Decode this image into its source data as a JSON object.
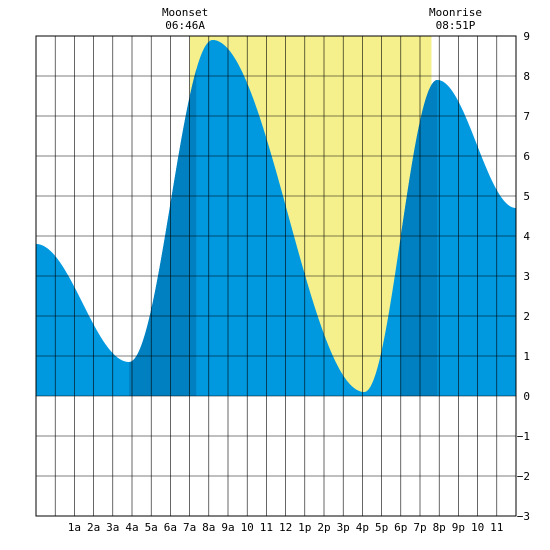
{
  "chart_data": {
    "type": "area",
    "x_unit": "hour of day",
    "xlim": [
      -1,
      24
    ],
    "ylim": [
      -3,
      9
    ],
    "y_ticks": [
      -3,
      -2,
      -1,
      0,
      1,
      2,
      3,
      4,
      5,
      6,
      7,
      8,
      9
    ],
    "x_ticks": [
      {
        "x": 1,
        "label": "1a"
      },
      {
        "x": 2,
        "label": "2a"
      },
      {
        "x": 3,
        "label": "3a"
      },
      {
        "x": 4,
        "label": "4a"
      },
      {
        "x": 5,
        "label": "5a"
      },
      {
        "x": 6,
        "label": "6a"
      },
      {
        "x": 7,
        "label": "7a"
      },
      {
        "x": 8,
        "label": "8a"
      },
      {
        "x": 9,
        "label": "9a"
      },
      {
        "x": 10,
        "label": "10"
      },
      {
        "x": 11,
        "label": "11"
      },
      {
        "x": 12,
        "label": "12"
      },
      {
        "x": 13,
        "label": "1p"
      },
      {
        "x": 14,
        "label": "2p"
      },
      {
        "x": 15,
        "label": "3p"
      },
      {
        "x": 16,
        "label": "4p"
      },
      {
        "x": 17,
        "label": "5p"
      },
      {
        "x": 18,
        "label": "6p"
      },
      {
        "x": 19,
        "label": "7p"
      },
      {
        "x": 20,
        "label": "8p"
      },
      {
        "x": 21,
        "label": "9p"
      },
      {
        "x": 22,
        "label": "10"
      },
      {
        "x": 23,
        "label": "11"
      }
    ],
    "tide_extremes": [
      {
        "x": -1,
        "y": 3.8
      },
      {
        "x": 3.85,
        "y": 0.85
      },
      {
        "x": 8.2,
        "y": 8.9
      },
      {
        "x": 16.1,
        "y": 0.1
      },
      {
        "x": 19.9,
        "y": 7.9
      },
      {
        "x": 24,
        "y": 4.7
      }
    ],
    "daylight": {
      "start": 7.0,
      "end": 19.6
    },
    "night_dark_bands": [
      [
        3.85,
        7.35
      ],
      [
        18.0,
        19.9
      ]
    ],
    "colors": {
      "water": "#0099e0",
      "water_dark": "#0080c0",
      "daylight": "#f5f08c",
      "grid": "#000000",
      "background": "#ffffff"
    },
    "annotations": [
      {
        "label": "Moonset",
        "time": "06:46A",
        "x": 6.767
      },
      {
        "label": "Moonrise",
        "time": "08:51P",
        "x": 20.85
      }
    ]
  }
}
